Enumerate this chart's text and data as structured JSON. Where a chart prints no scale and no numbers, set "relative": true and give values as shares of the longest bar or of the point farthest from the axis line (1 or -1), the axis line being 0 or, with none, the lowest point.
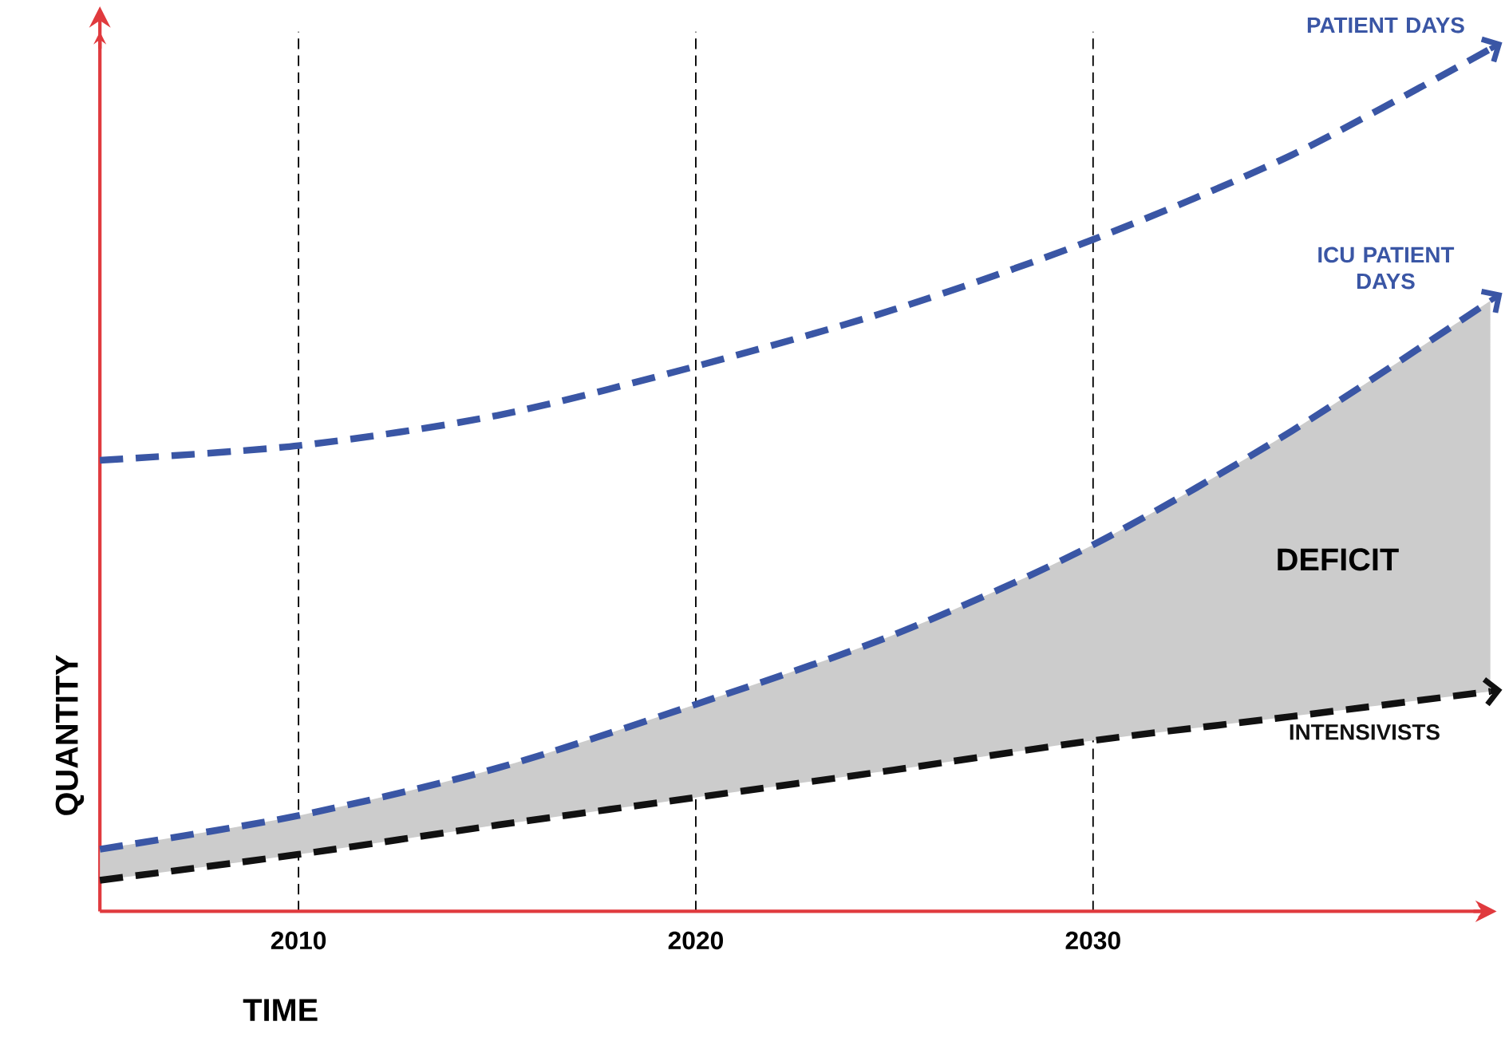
{
  "chart_data": {
    "type": "line",
    "relative": true,
    "xlabel": "TIME",
    "ylabel": "QUANTITY",
    "xlim": [
      2005,
      2040
    ],
    "xticks": [
      2010,
      2020,
      2030
    ],
    "grid": "x",
    "line_style": "dashed",
    "marker": "none",
    "series": [
      {
        "name": "PATIENT DAYS",
        "color": "#3a56a5",
        "x": [
          2005,
          2010,
          2015,
          2020,
          2025,
          2030,
          2035,
          2040
        ],
        "values": [
          0.523,
          0.54,
          0.575,
          0.632,
          0.698,
          0.779,
          0.877,
          1.0
        ]
      },
      {
        "name": "ICU PATIENT DAYS",
        "color": "#3a56a5",
        "x": [
          2005,
          2010,
          2015,
          2020,
          2025,
          2030,
          2035,
          2040
        ],
        "values": [
          0.072,
          0.111,
          0.166,
          0.24,
          0.321,
          0.425,
          0.557,
          0.708
        ],
        "lower": [
          0.036,
          0.066,
          0.1,
          0.132,
          0.164,
          0.198,
          0.226,
          0.255
        ],
        "upper": [
          0.072,
          0.111,
          0.166,
          0.24,
          0.321,
          0.425,
          0.557,
          0.708
        ]
      },
      {
        "name": "INTENSIVISTS",
        "color": "#111111",
        "x": [
          2005,
          2010,
          2015,
          2020,
          2025,
          2030,
          2035,
          2040
        ],
        "values": [
          0.036,
          0.066,
          0.1,
          0.132,
          0.164,
          0.198,
          0.226,
          0.255
        ]
      }
    ],
    "annotations": [
      "DEFICIT"
    ]
  }
}
